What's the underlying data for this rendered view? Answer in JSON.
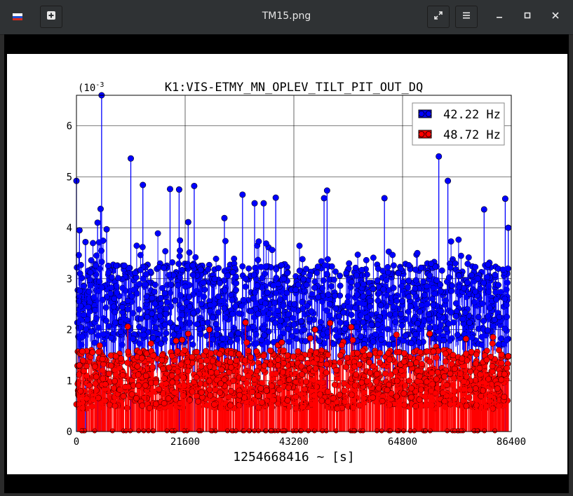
{
  "window": {
    "title": "TM15.png",
    "icons": {
      "app": "app-flag-icon",
      "new": "new-tab-icon",
      "fullscreen": "fullscreen-icon",
      "menu": "hamburger-menu-icon",
      "minimize": "minimize-icon",
      "maximize": "maximize-icon",
      "close": "close-icon"
    }
  },
  "chart_data": {
    "type": "scatter",
    "title": "K1:VIS-ETMY_MN_OPLEV_TILT_PIT_OUT_DQ",
    "xlabel": "1254668416 ~ [s]",
    "ylabel": "",
    "y_multiplier": "(10^-3",
    "xlim": [
      0,
      86400
    ],
    "ylim": [
      0,
      0.0066
    ],
    "xticks": [
      "0",
      "21600",
      "43200",
      "64800",
      "86400"
    ],
    "yticks": [
      "0",
      "1",
      "2",
      "3",
      "4",
      "5",
      "6"
    ],
    "grid": true,
    "legend_position": "top-right",
    "series": [
      {
        "name": "42.22 Hz",
        "color": "#0000ff",
        "style": "stem",
        "values": [
          {
            "x": 0,
            "y": 0.00492
          },
          {
            "x": 600,
            "y": 0.00395
          },
          {
            "x": 1800,
            "y": 0.00372
          },
          {
            "x": 4200,
            "y": 0.0041
          },
          {
            "x": 4800,
            "y": 0.00437
          },
          {
            "x": 5000,
            "y": 0.0066
          },
          {
            "x": 6000,
            "y": 0.00397
          },
          {
            "x": 10800,
            "y": 0.00536
          },
          {
            "x": 13200,
            "y": 0.00484
          },
          {
            "x": 18600,
            "y": 0.00476
          },
          {
            "x": 20400,
            "y": 0.00475
          },
          {
            "x": 22200,
            "y": 0.00411
          },
          {
            "x": 23400,
            "y": 0.00482
          },
          {
            "x": 29400,
            "y": 0.00419
          },
          {
            "x": 33000,
            "y": 0.00465
          },
          {
            "x": 35400,
            "y": 0.00448
          },
          {
            "x": 37200,
            "y": 0.00448
          },
          {
            "x": 39600,
            "y": 0.00459
          },
          {
            "x": 49200,
            "y": 0.00458
          },
          {
            "x": 49800,
            "y": 0.00473
          },
          {
            "x": 61200,
            "y": 0.00458
          },
          {
            "x": 72000,
            "y": 0.0054
          },
          {
            "x": 73800,
            "y": 0.00492
          },
          {
            "x": 81000,
            "y": 0.00436
          },
          {
            "x": 85200,
            "y": 0.00457
          },
          {
            "x": 85800,
            "y": 0.004
          }
        ]
      },
      {
        "name": "48.72 Hz",
        "color": "#ff0000",
        "style": "stem",
        "values": [
          {
            "x": 600,
            "y": 0.0013
          },
          {
            "x": 10200,
            "y": 0.00206
          },
          {
            "x": 19800,
            "y": 0.00178
          },
          {
            "x": 21000,
            "y": 0.0018
          },
          {
            "x": 22200,
            "y": 0.00192
          },
          {
            "x": 26400,
            "y": 0.002
          },
          {
            "x": 33600,
            "y": 0.00214
          },
          {
            "x": 40800,
            "y": 0.00175
          },
          {
            "x": 47400,
            "y": 0.002
          },
          {
            "x": 50400,
            "y": 0.00213
          },
          {
            "x": 54600,
            "y": 0.00205
          },
          {
            "x": 63600,
            "y": 0.0019
          },
          {
            "x": 70200,
            "y": 0.00192
          },
          {
            "x": 77400,
            "y": 0.00182
          },
          {
            "x": 85800,
            "y": 0.00148
          }
        ]
      }
    ]
  }
}
